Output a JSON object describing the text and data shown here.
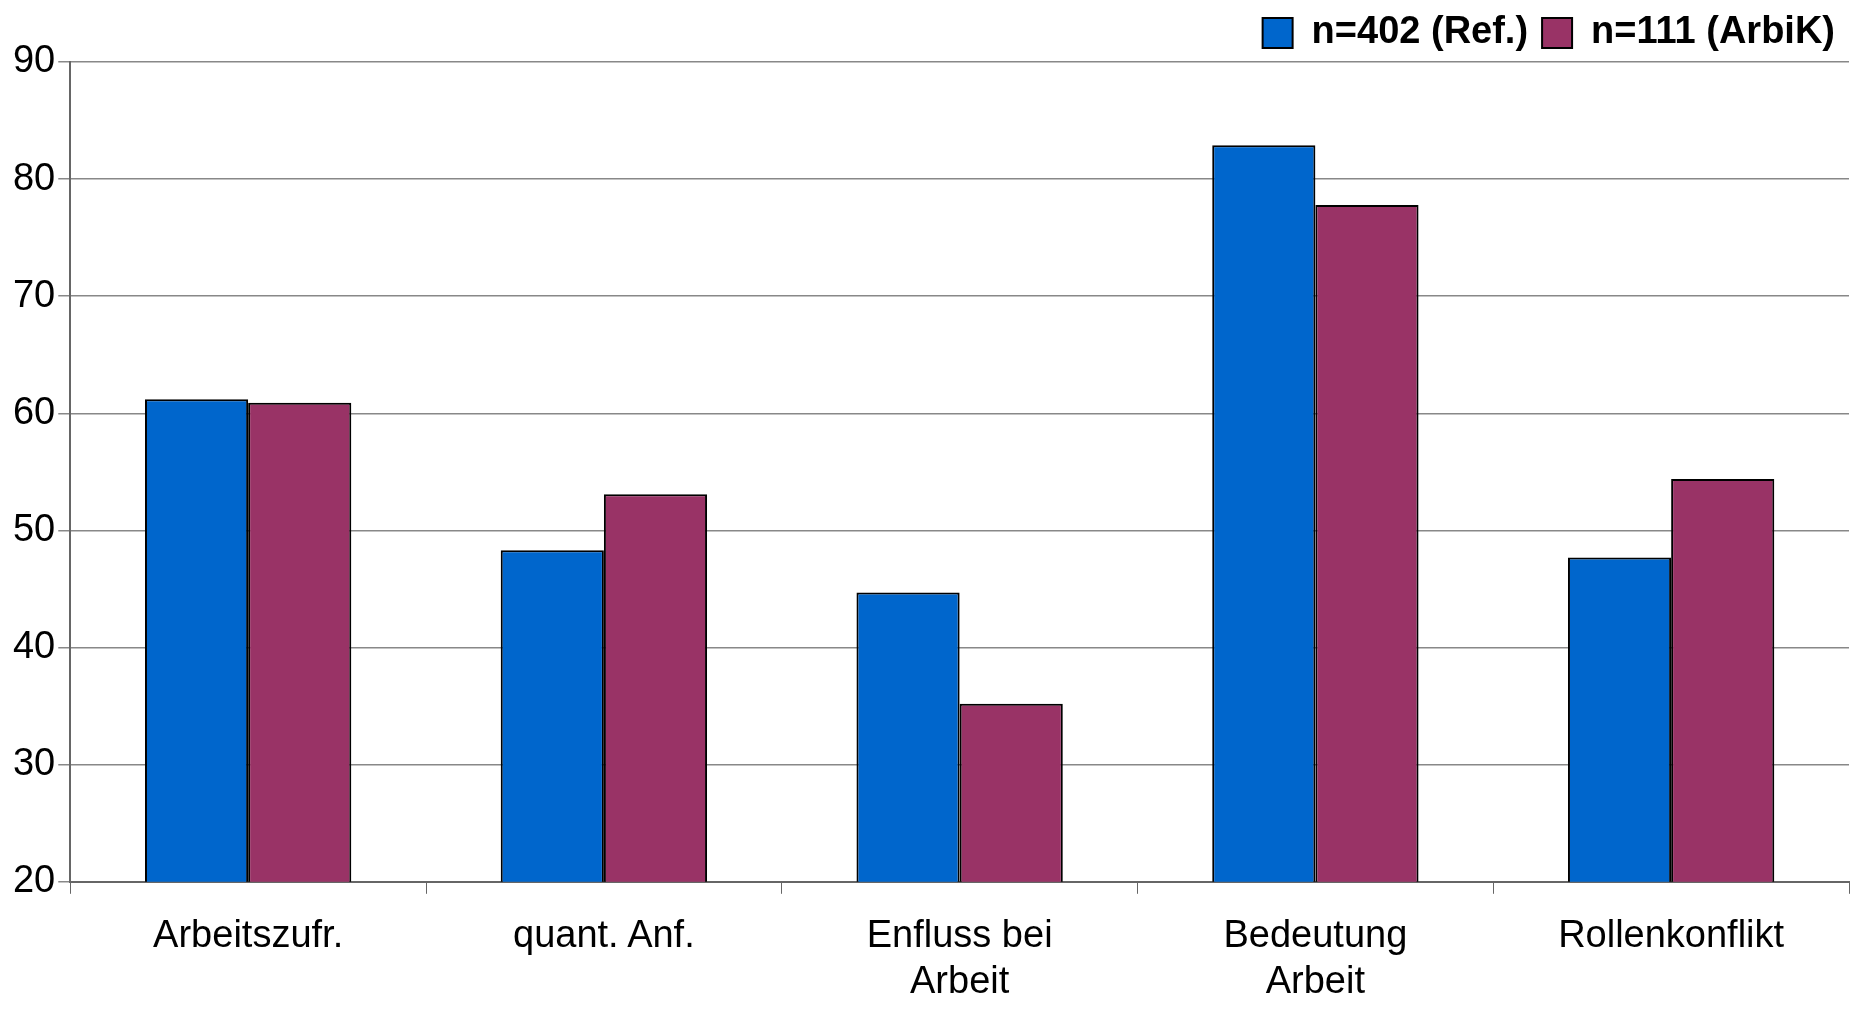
{
  "chart_data": {
    "type": "bar",
    "categories": [
      "Arbeitszufr.",
      "quant. Anf.",
      "Enfluss bei Arbeit",
      "Bedeutung Arbeit",
      "Rollenkonflikt"
    ],
    "series": [
      {
        "name": "n=402 (Ref.)",
        "color": "#0066cc",
        "values": [
          61.2,
          48.3,
          44.7,
          82.9,
          47.7
        ]
      },
      {
        "name": "n=111 (ArbiK)",
        "color": "#993366",
        "values": [
          60.9,
          53.1,
          35.2,
          77.8,
          54.4
        ]
      }
    ],
    "ylim": [
      20,
      90
    ],
    "yticks": [
      20,
      30,
      40,
      50,
      60,
      70,
      80,
      90
    ],
    "grid": "y",
    "legend": "top right"
  }
}
